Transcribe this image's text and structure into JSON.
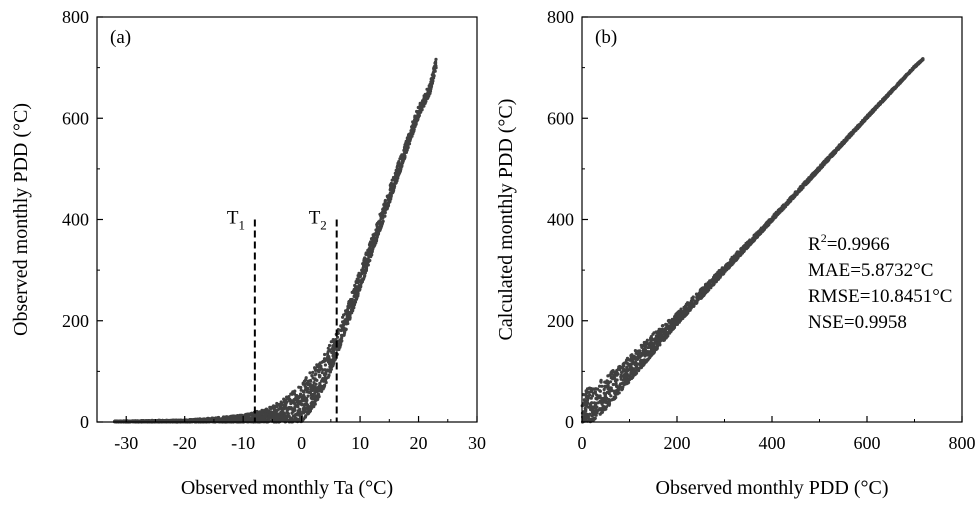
{
  "chart_data": [
    {
      "type": "scatter",
      "panel_label": "(a)",
      "xlabel": "Observed monthly Ta (°C)",
      "ylabel": "Observed monthly PDD (°C)",
      "xlim": [
        -35,
        30
      ],
      "ylim": [
        0,
        800
      ],
      "x_ticks": [
        -30,
        -20,
        -10,
        0,
        10,
        20,
        30
      ],
      "y_ticks": [
        0,
        200,
        400,
        600,
        800
      ],
      "marker_color": "#404040",
      "grid": false,
      "envelope": {
        "x": [
          -32,
          -20,
          -15,
          -10,
          -8,
          -6,
          -4,
          -2,
          0,
          2,
          4,
          6,
          8,
          10,
          12,
          14,
          16,
          18,
          20,
          22,
          23
        ],
        "y_lower": [
          0,
          0,
          0,
          0,
          0,
          0,
          0,
          0,
          1,
          28,
          72,
          130,
          195,
          262,
          330,
          398,
          466,
          534,
          602,
          650,
          700
        ],
        "y_upper": [
          2,
          4,
          8,
          14,
          20,
          26,
          38,
          55,
          78,
          105,
          140,
          175,
          238,
          300,
          365,
          430,
          495,
          560,
          625,
          670,
          718
        ]
      },
      "threshold_lines": [
        {
          "label": "T",
          "subscript": "1",
          "x": -8,
          "y_top": 400
        },
        {
          "label": "T",
          "subscript": "2",
          "x": 6,
          "y_top": 400
        }
      ]
    },
    {
      "type": "scatter",
      "panel_label": "(b)",
      "xlabel": "Observed monthly PDD (°C)",
      "ylabel": "Calculated monthly PDD (°C)",
      "xlim": [
        0,
        800
      ],
      "ylim": [
        0,
        800
      ],
      "x_ticks": [
        0,
        200,
        400,
        600,
        800
      ],
      "y_ticks": [
        0,
        200,
        400,
        600,
        800
      ],
      "marker_color": "#404040",
      "grid": false,
      "envelope": {
        "x": [
          0,
          20,
          50,
          100,
          150,
          200,
          300,
          400,
          500,
          600,
          700,
          718
        ],
        "y_lower": [
          0,
          0,
          25,
          80,
          135,
          192,
          295,
          397,
          498,
          600,
          700,
          716
        ],
        "y_upper": [
          60,
          70,
          90,
          130,
          175,
          215,
          310,
          405,
          505,
          605,
          703,
          718
        ]
      },
      "stats": {
        "r2_label": "R",
        "r2_sup": "2",
        "r2_value": "=0.9966",
        "mae": "MAE=5.8732°C",
        "rmse": "RMSE=10.8451°C",
        "nse": "NSE=0.9958"
      }
    }
  ]
}
